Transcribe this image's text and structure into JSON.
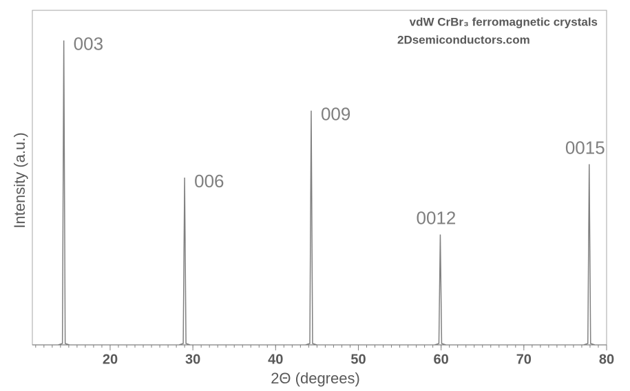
{
  "chart_data": {
    "type": "stem",
    "title": "vdW CrBr₃ ferromagnetic crystals",
    "subtitle": "2Dsemiconductors.com",
    "x_label": "2Θ (degrees)",
    "y_label": "Intensity (a.u.)",
    "x": [
      14.4,
      29.0,
      44.3,
      59.9,
      77.9
    ],
    "values": [
      91,
      50,
      70,
      33,
      54
    ],
    "labels": [
      "003",
      "006",
      "009",
      "0012",
      "0015"
    ],
    "color": "#808080",
    "xlim": [
      10.6,
      80
    ],
    "xticks": [
      20,
      30,
      40,
      50,
      60,
      70,
      80
    ],
    "minor_tick_step": 1,
    "ylim": [
      0,
      100
    ],
    "grid": false
  }
}
